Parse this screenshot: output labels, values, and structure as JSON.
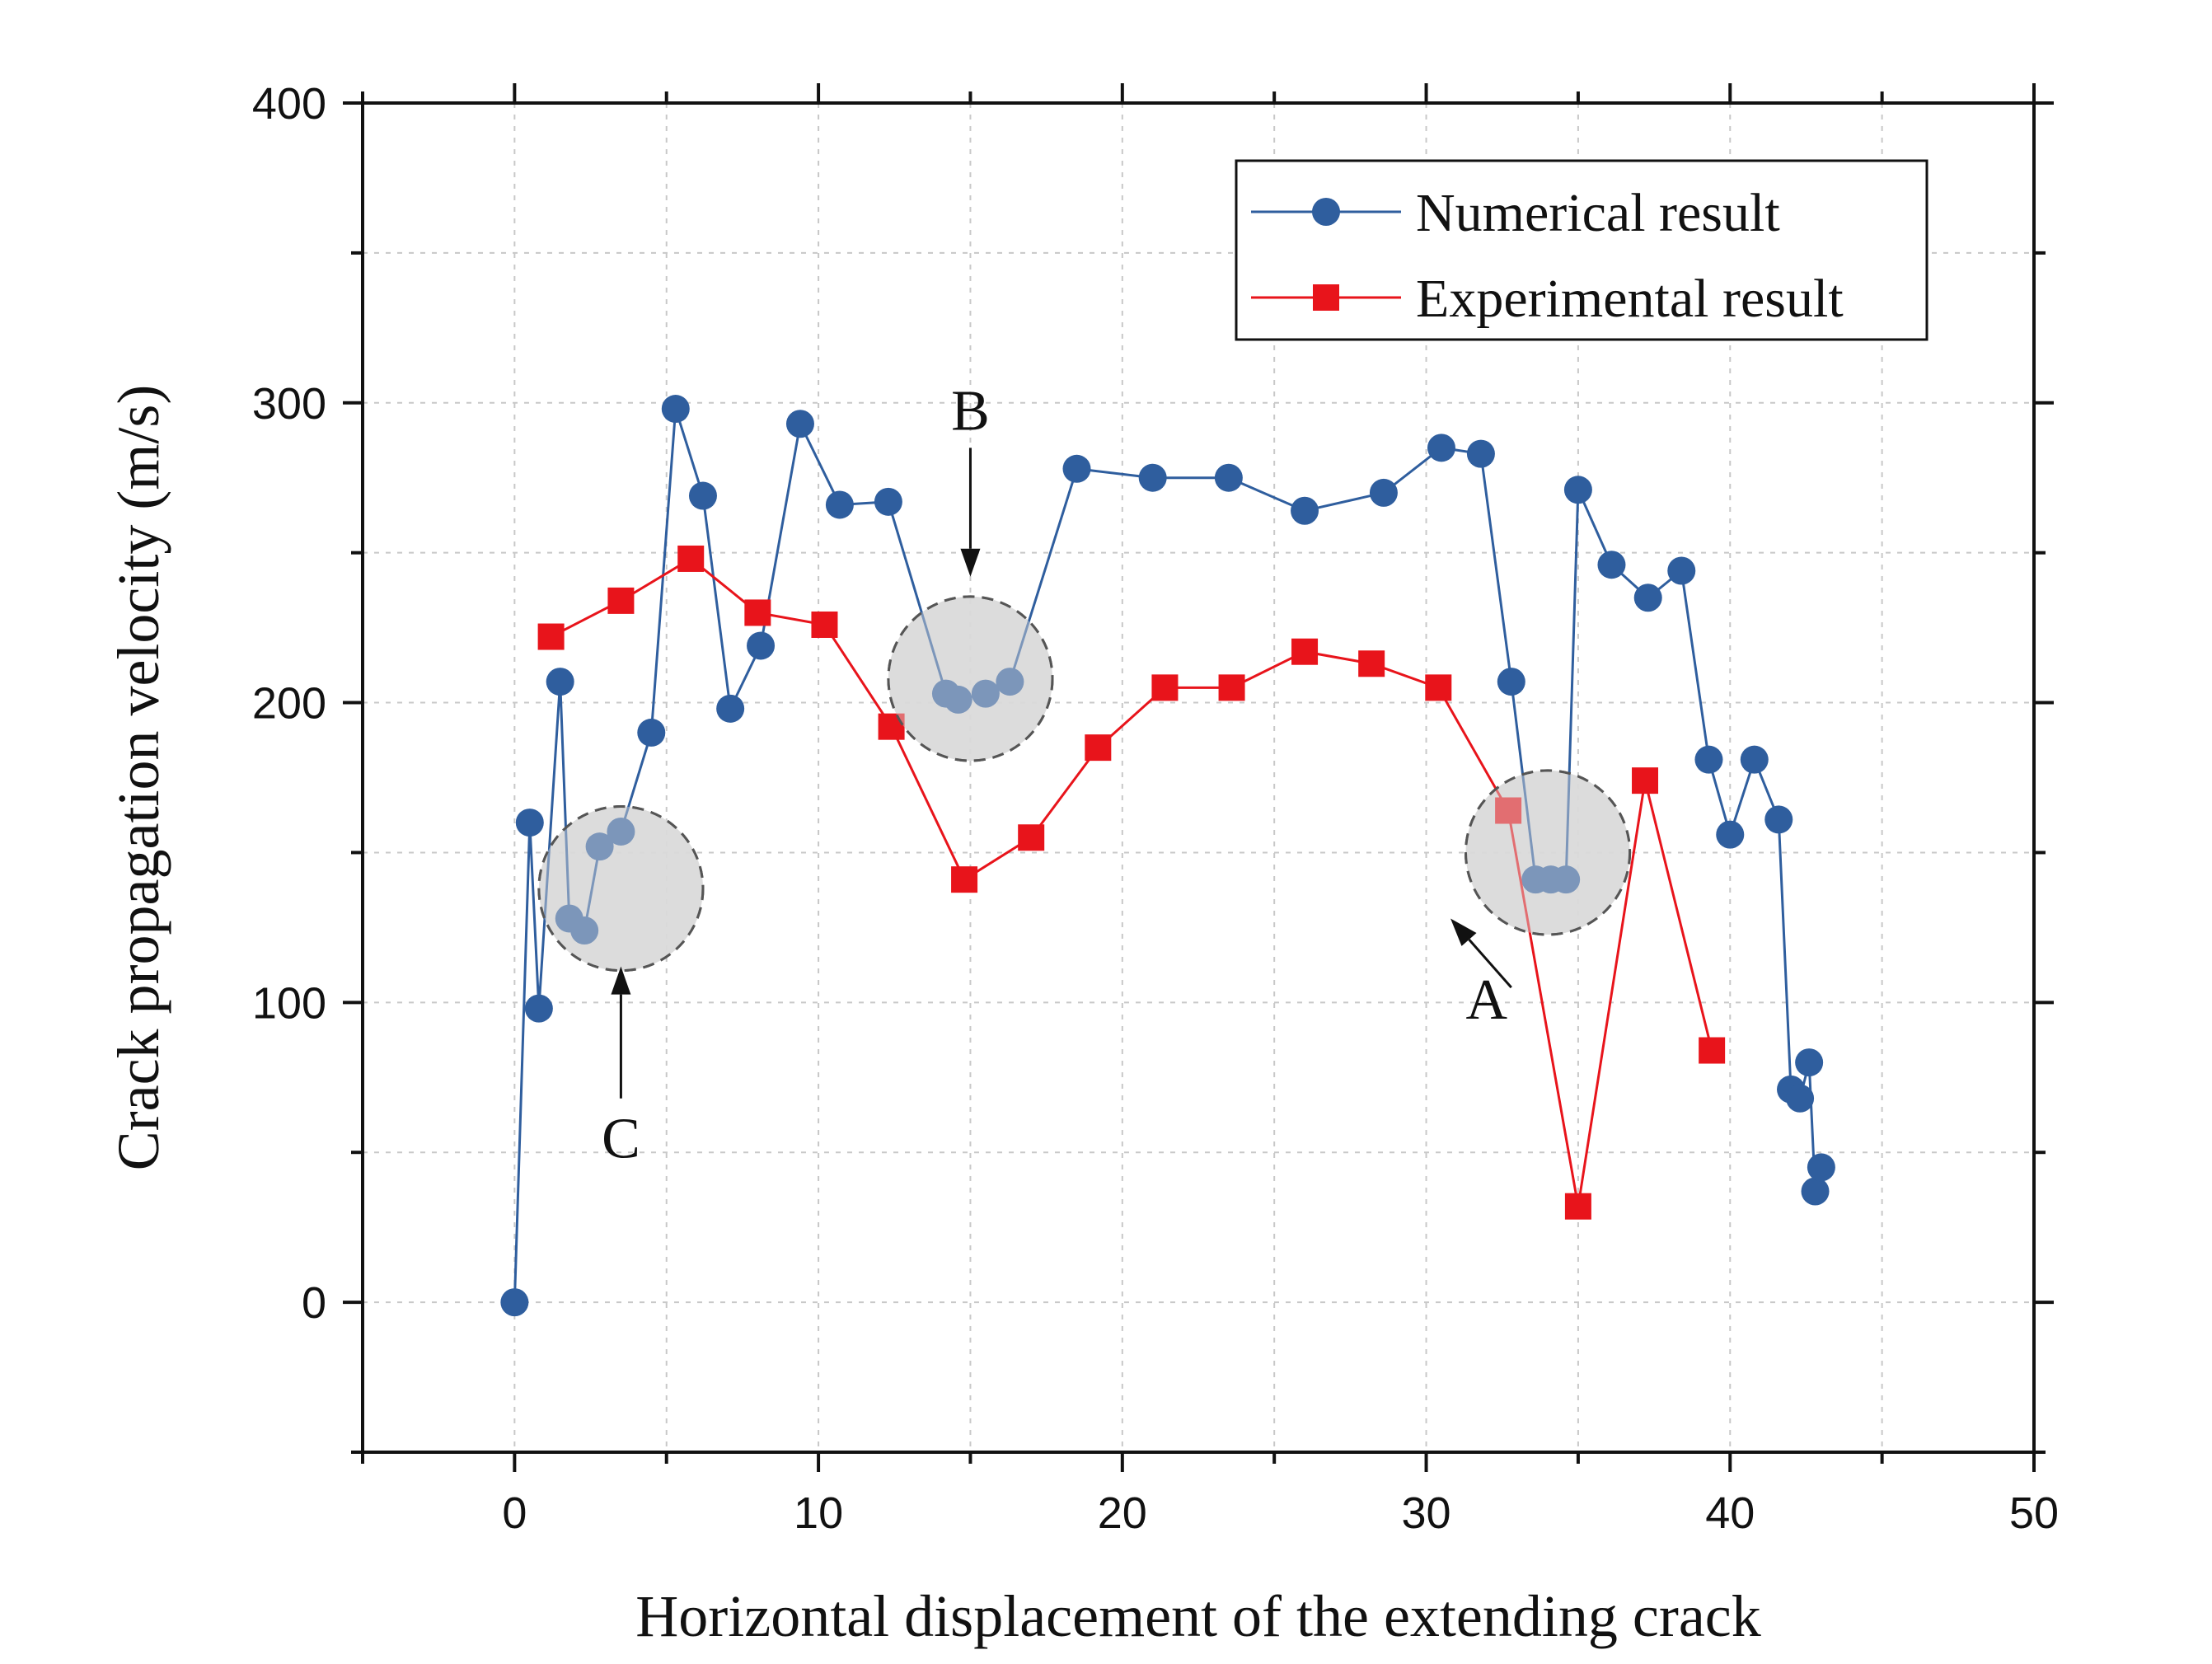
{
  "chart_data": {
    "type": "line",
    "xlabel": "Horizontal displacement of the extending crack",
    "ylabel": "Crack propagation velocity (m/s)",
    "xlim": [
      -5,
      50
    ],
    "ylim": [
      -50,
      400
    ],
    "x_ticks": [
      0,
      10,
      20,
      30,
      40,
      50
    ],
    "y_ticks": [
      0,
      100,
      200,
      300,
      400
    ],
    "x_tick_labels": [
      "0",
      "10",
      "20",
      "30",
      "40",
      "50"
    ],
    "y_tick_labels": [
      "0",
      "100",
      "200",
      "300",
      "400"
    ],
    "grid": true,
    "legend_position": "top-right",
    "series": [
      {
        "name": "Numerical result",
        "color": "#2f5e9e",
        "marker": "circle",
        "x": [
          0,
          0.5,
          0.8,
          1.5,
          1.8,
          2.3,
          2.8,
          3.5,
          4.5,
          5.3,
          6.2,
          7.1,
          8.1,
          9.4,
          10.7,
          12.3,
          14.2,
          14.6,
          15.5,
          16.3,
          18.5,
          21.0,
          23.5,
          26.0,
          28.6,
          30.5,
          31.8,
          32.8,
          33.6,
          34.1,
          34.6,
          35.0,
          36.1,
          37.3,
          38.4,
          39.3,
          40.0,
          40.8,
          41.6,
          42.0,
          42.3,
          42.6,
          42.8,
          43.0
        ],
        "y": [
          0,
          160,
          98,
          207,
          128,
          124,
          152,
          157,
          190,
          298,
          269,
          198,
          219,
          293,
          266,
          267,
          203,
          201,
          203,
          207,
          278,
          275,
          275,
          264,
          270,
          285,
          283,
          207,
          141,
          141,
          141,
          271,
          246,
          235,
          244,
          181,
          156,
          181,
          161,
          71,
          68,
          80,
          37,
          45
        ]
      },
      {
        "name": "Experimental result",
        "color": "#e8141b",
        "marker": "square",
        "x": [
          1.2,
          3.5,
          5.8,
          8.0,
          10.2,
          12.4,
          14.8,
          17.0,
          19.2,
          21.4,
          23.6,
          26.0,
          28.2,
          30.4,
          32.7,
          35.0,
          37.2,
          39.4
        ],
        "y": [
          222,
          234,
          248,
          230,
          226,
          192,
          141,
          155,
          185,
          205,
          205,
          217,
          213,
          205,
          164,
          32,
          174,
          84
        ]
      }
    ],
    "annotations": [
      {
        "label": "A",
        "circle_center": [
          34.0,
          150
        ],
        "circle_radius": 2.7,
        "arrow_from": [
          32.8,
          105
        ],
        "arrow_to": [
          30.8,
          128
        ]
      },
      {
        "label": "B",
        "circle_center": [
          15.0,
          208
        ],
        "circle_radius": 2.7,
        "arrow_from": [
          15.0,
          285
        ],
        "arrow_to": [
          15.0,
          242
        ]
      },
      {
        "label": "C",
        "circle_center": [
          3.5,
          138
        ],
        "circle_radius": 2.7,
        "arrow_from": [
          3.5,
          68
        ],
        "arrow_to": [
          3.5,
          112
        ]
      }
    ]
  }
}
